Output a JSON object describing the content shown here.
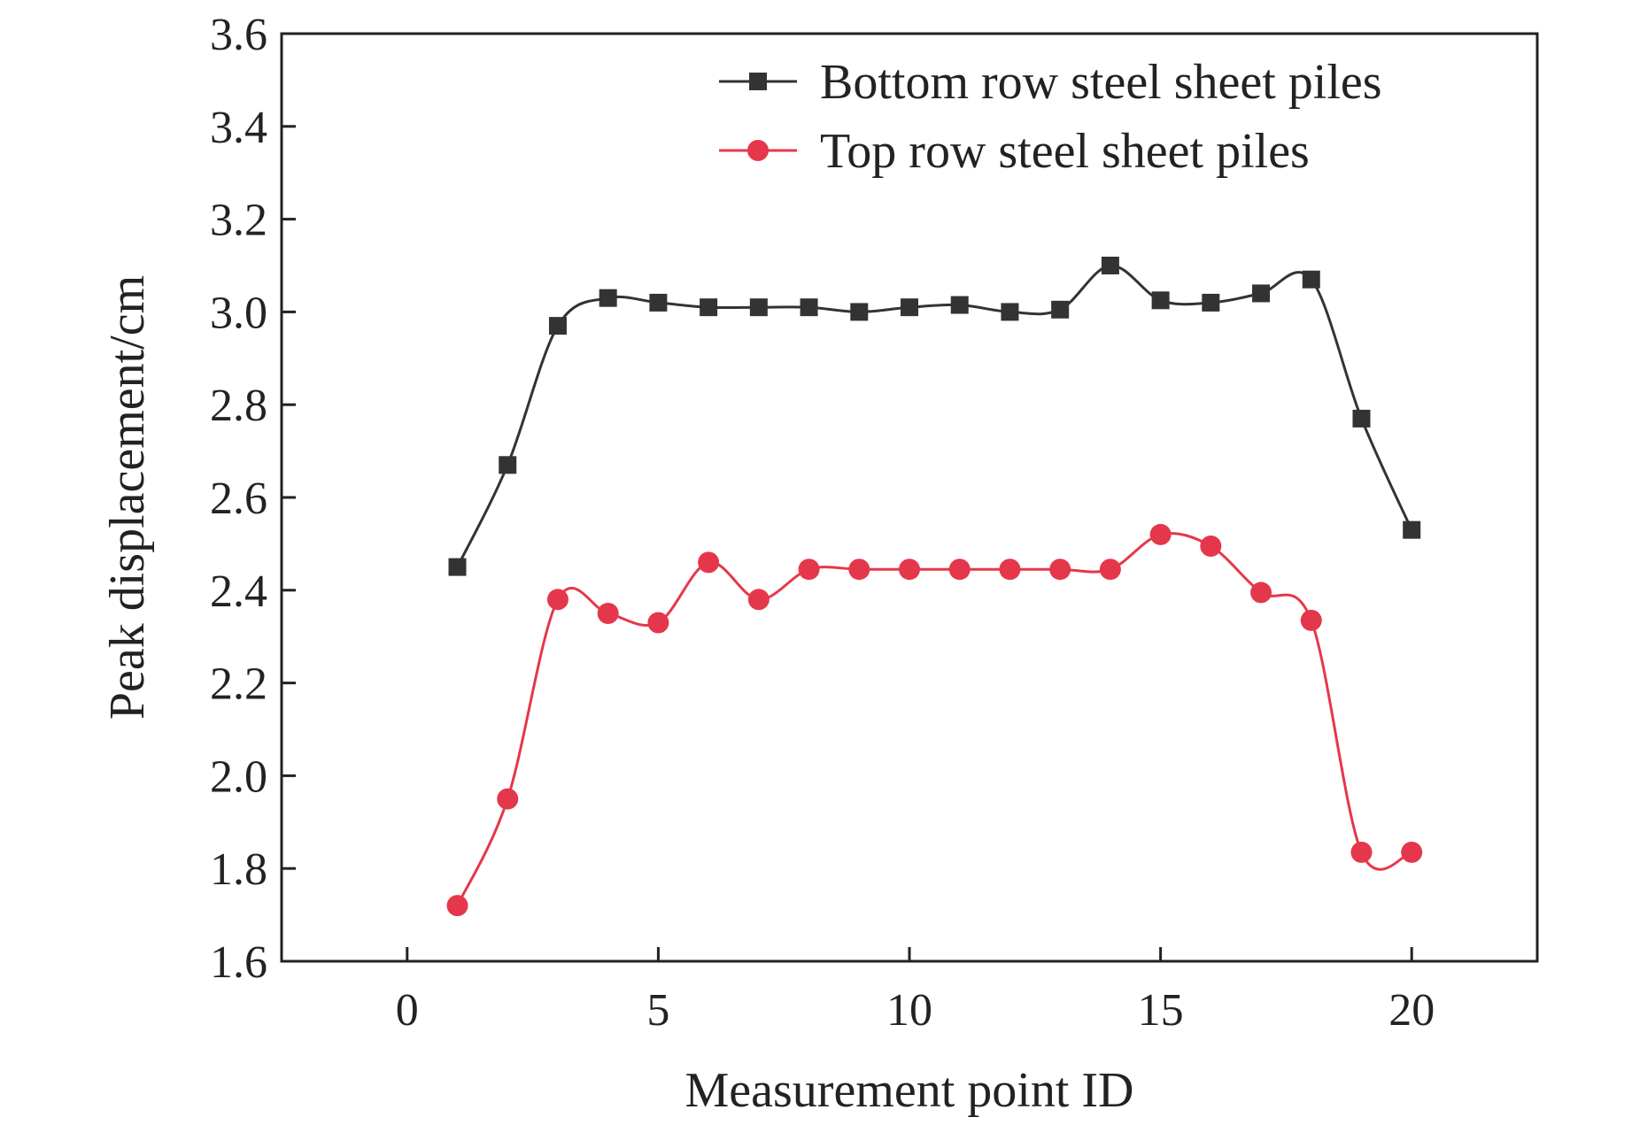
{
  "chart_data": {
    "type": "line",
    "title": "",
    "xlabel": "Measurement point ID",
    "ylabel": "Peak displacement/cm",
    "xlim": [
      -2.5,
      22.5
    ],
    "ylim": [
      1.6,
      3.6
    ],
    "xticks": [
      0,
      5,
      10,
      15,
      20
    ],
    "yticks": [
      1.6,
      1.8,
      2.0,
      2.2,
      2.4,
      2.6,
      2.8,
      3.0,
      3.2,
      3.4,
      3.6
    ],
    "xtick_labels": [
      "0",
      "5",
      "10",
      "15",
      "20"
    ],
    "ytick_labels": [
      "1.6",
      "1.8",
      "2.0",
      "2.2",
      "2.4",
      "2.6",
      "2.8",
      "3.0",
      "3.2",
      "3.4",
      "3.6"
    ],
    "grid": false,
    "legend_position": "top-right",
    "x": [
      1,
      2,
      3,
      4,
      5,
      6,
      7,
      8,
      9,
      10,
      11,
      12,
      13,
      14,
      15,
      16,
      17,
      18,
      19,
      20
    ],
    "series": [
      {
        "name": "Bottom row steel sheet piles",
        "marker": "square",
        "color": "#333333",
        "values": [
          2.45,
          2.67,
          2.97,
          3.03,
          3.02,
          3.01,
          3.01,
          3.01,
          3.0,
          3.01,
          3.015,
          3.0,
          3.005,
          3.1,
          3.025,
          3.02,
          3.04,
          3.07,
          2.77,
          2.53
        ]
      },
      {
        "name": "Top row steel sheet piles",
        "marker": "circle",
        "color": "#e5374b",
        "values": [
          1.72,
          1.95,
          2.38,
          2.35,
          2.33,
          2.46,
          2.38,
          2.445,
          2.445,
          2.445,
          2.445,
          2.445,
          2.445,
          2.445,
          2.52,
          2.495,
          2.395,
          2.335,
          1.835,
          1.835
        ]
      }
    ]
  }
}
